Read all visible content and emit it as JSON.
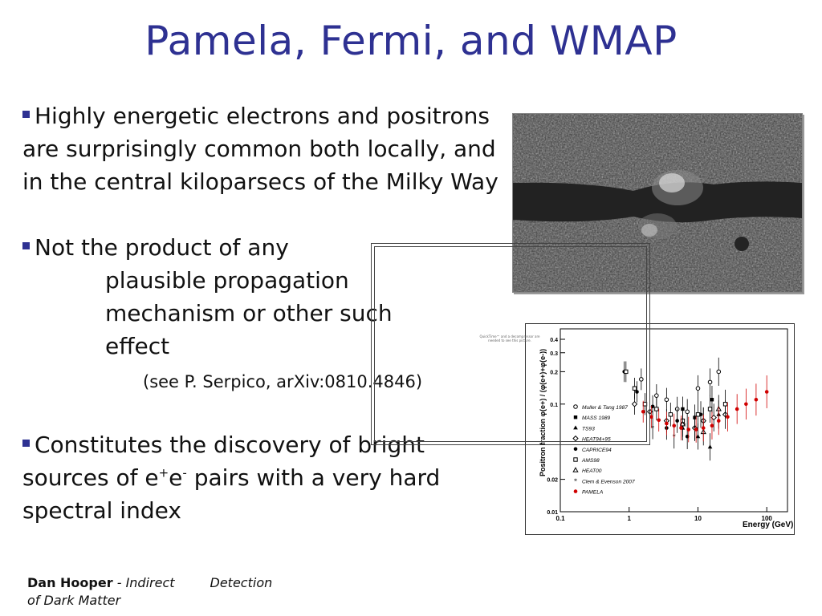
{
  "slide": {
    "title": "Pamela, Fermi, and WMAP",
    "bullet1": "Highly energetic electrons and positrons are surprisingly common both locally, and in the central kiloparsecs of the Milky Way",
    "bullet2_line1": "Not the product of any",
    "bullet2_line2": "plausible propagation",
    "bullet2_line3": "mechanism or other such",
    "bullet2_line4": "effect",
    "citation": "(see P. Serpico, arXiv:0810.4846)",
    "bullet3_part1": "Constitutes the discovery of bright sources of e",
    "bullet3_sup1": "+",
    "bullet3_mid": "e",
    "bullet3_sup2": "-",
    "bullet3_part2": " pairs with a very hard spectral index",
    "footer_author": "Dan Hooper",
    "footer_sep": " - ",
    "footer_title1": "Indirect",
    "footer_title2": "Detection",
    "footer_title3": "of Dark Matter",
    "quicktime_note": "QuickTime™ and a decompressor are needed to see this picture.",
    "accent_color": "#2e3192"
  },
  "chart_data": {
    "type": "scatter",
    "xlabel": "Energy (GeV)",
    "ylabel": "Positron fraction  φ(e+) / (φ(e+)+φ(e-))",
    "xscale": "log",
    "yscale": "log",
    "xlim": [
      0.1,
      200
    ],
    "ylim": [
      0.01,
      0.5
    ],
    "x_ticks": [
      "0.1",
      "1",
      "10",
      "100"
    ],
    "y_ticks": [
      "0.01",
      "0.02",
      "0.1",
      "0.2",
      "0.3",
      "0.4"
    ],
    "legend": "left",
    "series": [
      {
        "name": "Muller & Tang 1987",
        "marker": "circle-open",
        "color": "#000000",
        "points": [
          [
            1.5,
            0.17
          ],
          [
            2.5,
            0.12
          ],
          [
            3.5,
            0.11
          ],
          [
            5,
            0.09
          ],
          [
            7,
            0.085
          ],
          [
            10,
            0.14
          ],
          [
            15,
            0.16
          ],
          [
            20,
            0.2
          ]
        ]
      },
      {
        "name": "MASS 1989",
        "marker": "square-filled",
        "color": "#000000",
        "points": [
          [
            6,
            0.09
          ],
          [
            9,
            0.075
          ],
          [
            12,
            0.07
          ],
          [
            16,
            0.11
          ]
        ]
      },
      {
        "name": "TS93",
        "marker": "triangle-filled",
        "color": "#000000",
        "points": [
          [
            6,
            0.06
          ],
          [
            10,
            0.05
          ],
          [
            15,
            0.04
          ],
          [
            20,
            0.08
          ]
        ]
      },
      {
        "name": "HEAT94+95",
        "marker": "diamond-open",
        "color": "#000000",
        "points": [
          [
            1.2,
            0.1
          ],
          [
            2,
            0.085
          ],
          [
            3.5,
            0.07
          ],
          [
            6,
            0.065
          ],
          [
            9,
            0.06
          ],
          [
            12,
            0.07
          ],
          [
            17,
            0.075
          ],
          [
            25,
            0.08
          ]
        ]
      },
      {
        "name": "CAPRICE94",
        "marker": "circle-filled",
        "color": "#000000",
        "points": [
          [
            0.85,
            0.2
          ],
          [
            1.3,
            0.13
          ],
          [
            2.2,
            0.095
          ],
          [
            3.5,
            0.06
          ],
          [
            5,
            0.07
          ],
          [
            7,
            0.05
          ],
          [
            11,
            0.08
          ]
        ]
      },
      {
        "name": "AMS98",
        "marker": "square-open",
        "color": "#000000",
        "points": [
          [
            0.9,
            0.2
          ],
          [
            1.2,
            0.14
          ],
          [
            1.7,
            0.1
          ],
          [
            2.5,
            0.09
          ],
          [
            4,
            0.08
          ],
          [
            6,
            0.07
          ],
          [
            10,
            0.08
          ],
          [
            15,
            0.09
          ],
          [
            25,
            0.1
          ]
        ]
      },
      {
        "name": "HEAT00",
        "marker": "triangle-open",
        "color": "#000000",
        "points": [
          [
            6,
            0.065
          ],
          [
            12,
            0.055
          ],
          [
            20,
            0.09
          ]
        ]
      },
      {
        "name": "Clem & Evenson 2007",
        "marker": "star",
        "color": "#000000",
        "points": [
          [
            2.2,
            0.06
          ],
          [
            4.5,
            0.05
          ],
          [
            9,
            0.06
          ]
        ]
      },
      {
        "name": "PAMELA",
        "marker": "circle-filled",
        "color": "#d00000",
        "points": [
          [
            1.6,
            0.085
          ],
          [
            2.1,
            0.076
          ],
          [
            2.7,
            0.071
          ],
          [
            3.5,
            0.066
          ],
          [
            4.5,
            0.063
          ],
          [
            5.7,
            0.06
          ],
          [
            7.3,
            0.058
          ],
          [
            9.4,
            0.058
          ],
          [
            12,
            0.06
          ],
          [
            16,
            0.063
          ],
          [
            20,
            0.07
          ],
          [
            27,
            0.076
          ],
          [
            37,
            0.09
          ],
          [
            50,
            0.1
          ],
          [
            70,
            0.11
          ],
          [
            100,
            0.13
          ]
        ]
      }
    ]
  }
}
